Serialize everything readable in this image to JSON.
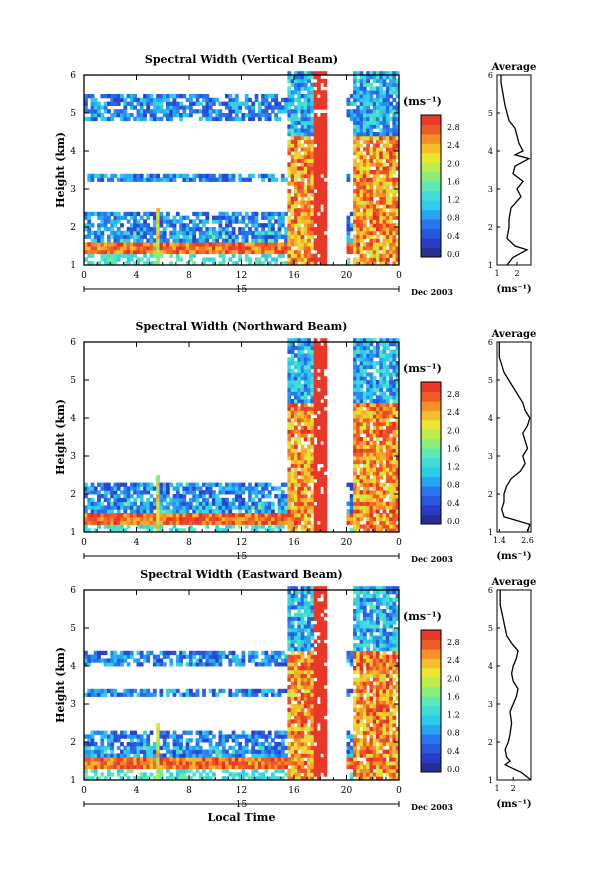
{
  "figure": {
    "shared_xlabel": "Local Time",
    "date_label": "Dec 2003",
    "day_label": "15",
    "ylabel": "Height (km)",
    "average_title": "Average",
    "unit_label": "(ms⁻¹)",
    "colorbar_ticks": [
      "2.8",
      "2.4",
      "2.0",
      "1.6",
      "1.2",
      "0.8",
      "0.4",
      "0.0"
    ]
  },
  "chart_data": [
    {
      "type": "heatmap",
      "title": "Spectral Width (Vertical Beam)",
      "xlabel": "",
      "ylabel": "Height (km)",
      "xlim": [
        0,
        24
      ],
      "ylim": [
        1,
        6
      ],
      "x_ticks": [
        "0",
        "4",
        "8",
        "12",
        "16",
        "20",
        "0"
      ],
      "y_ticks": [
        "1",
        "2",
        "3",
        "4",
        "5",
        "6"
      ],
      "colorbar": {
        "label": "(ms⁻¹)",
        "range": [
          0.0,
          3.0
        ],
        "ticks": [
          "2.8",
          "2.4",
          "2.0",
          "1.6",
          "1.2",
          "0.8",
          "0.4",
          "0.0"
        ]
      },
      "features": {
        "high_band_km": [
          1.3,
          1.6
        ],
        "low_layers_km": [
          [
            1.6,
            2.4
          ],
          [
            3.2,
            3.4
          ],
          [
            4.8,
            5.4
          ]
        ],
        "convective_hours": [
          [
            15.5,
            18.5
          ],
          [
            20.5,
            24
          ]
        ],
        "data_gap_hours": [
          18.5,
          20.0
        ]
      },
      "average_profile": {
        "title": "Average",
        "xlabel": "(ms⁻¹)",
        "x_ticks": [
          "1",
          "2"
        ],
        "xlim": [
          1,
          2.7
        ],
        "ylim": [
          1,
          6
        ],
        "height_km": [
          1.0,
          1.2,
          1.4,
          1.5,
          1.7,
          2.0,
          2.2,
          2.5,
          2.8,
          3.0,
          3.2,
          3.4,
          3.6,
          3.8,
          3.9,
          4.0,
          4.2,
          4.4,
          4.6,
          4.8,
          5.0,
          5.2,
          5.5,
          5.8,
          6.0
        ],
        "width": [
          1.5,
          1.8,
          2.5,
          1.9,
          1.5,
          1.6,
          1.6,
          1.7,
          2.2,
          2.0,
          2.3,
          1.8,
          1.9,
          2.6,
          1.9,
          2.3,
          2.1,
          2.0,
          1.9,
          1.6,
          1.5,
          1.4,
          1.3,
          1.2,
          1.2
        ]
      }
    },
    {
      "type": "heatmap",
      "title": "Spectral Width (Northward Beam)",
      "xlabel": "",
      "ylabel": "Height (km)",
      "xlim": [
        0,
        24
      ],
      "ylim": [
        1,
        6
      ],
      "x_ticks": [
        "0",
        "4",
        "8",
        "12",
        "16",
        "20",
        "0"
      ],
      "y_ticks": [
        "1",
        "2",
        "3",
        "4",
        "5",
        "6"
      ],
      "colorbar": {
        "label": "(ms⁻¹)",
        "range": [
          0.0,
          3.0
        ],
        "ticks": [
          "2.8",
          "2.4",
          "2.0",
          "1.6",
          "1.2",
          "0.8",
          "0.4",
          "0.0"
        ]
      },
      "features": {
        "high_band_km": [
          1.2,
          1.5
        ],
        "low_layers_km": [
          [
            1.5,
            2.3
          ]
        ],
        "convective_hours": [
          [
            15.5,
            18.5
          ],
          [
            20.5,
            24
          ]
        ],
        "data_gap_hours": [
          18.5,
          20.0
        ]
      },
      "average_profile": {
        "title": "Average",
        "xlabel": "(ms⁻¹)",
        "x_ticks": [
          "1.4",
          "2.6"
        ],
        "xlim": [
          1.3,
          2.75
        ],
        "ylim": [
          1,
          6
        ],
        "height_km": [
          1.0,
          1.2,
          1.4,
          1.6,
          1.8,
          2.0,
          2.2,
          2.4,
          2.6,
          2.8,
          3.0,
          3.2,
          3.4,
          3.6,
          3.8,
          4.0,
          4.2,
          4.4,
          4.6,
          4.8,
          5.0,
          5.2,
          5.4,
          5.6,
          5.8,
          6.0
        ],
        "width": [
          2.6,
          2.7,
          1.6,
          1.5,
          1.6,
          1.6,
          1.7,
          1.9,
          2.3,
          2.5,
          2.4,
          2.6,
          2.5,
          2.4,
          2.6,
          2.7,
          2.5,
          2.4,
          2.2,
          2.0,
          1.8,
          1.6,
          1.5,
          1.4,
          1.4,
          1.4
        ]
      }
    },
    {
      "type": "heatmap",
      "title": "Spectral Width (Eastward Beam)",
      "xlabel": "Local Time",
      "ylabel": "Height (km)",
      "xlim": [
        0,
        24
      ],
      "ylim": [
        1,
        6
      ],
      "x_ticks": [
        "0",
        "4",
        "8",
        "12",
        "16",
        "20",
        "0"
      ],
      "y_ticks": [
        "1",
        "2",
        "3",
        "4",
        "5",
        "6"
      ],
      "colorbar": {
        "label": "(ms⁻¹)",
        "range": [
          0.0,
          3.0
        ],
        "ticks": [
          "2.8",
          "2.4",
          "2.0",
          "1.6",
          "1.2",
          "0.8",
          "0.4",
          "0.0"
        ]
      },
      "features": {
        "high_band_km": [
          1.3,
          1.6
        ],
        "low_layers_km": [
          [
            1.6,
            2.3
          ],
          [
            3.2,
            3.4
          ],
          [
            4.0,
            4.4
          ]
        ],
        "convective_hours": [
          [
            15.5,
            18.5
          ],
          [
            20.5,
            24
          ]
        ],
        "data_gap_hours": [
          18.5,
          20.0
        ]
      },
      "average_profile": {
        "title": "Average",
        "xlabel": "(ms⁻¹)",
        "x_ticks": [
          "1",
          "2"
        ],
        "xlim": [
          1,
          3.1
        ],
        "ylim": [
          1,
          6
        ],
        "height_km": [
          1.0,
          1.2,
          1.4,
          1.5,
          1.6,
          1.8,
          2.0,
          2.2,
          2.5,
          2.8,
          3.0,
          3.2,
          3.4,
          3.6,
          3.8,
          4.0,
          4.2,
          4.4,
          4.6,
          4.8,
          5.0,
          5.2,
          5.4,
          5.6,
          5.8,
          6.0
        ],
        "width": [
          3.1,
          2.5,
          1.5,
          1.8,
          1.6,
          1.5,
          1.7,
          1.8,
          1.9,
          1.8,
          2.0,
          2.2,
          2.3,
          2.0,
          1.9,
          2.0,
          2.2,
          2.3,
          1.9,
          1.6,
          1.5,
          1.4,
          1.3,
          1.2,
          1.2,
          1.2
        ]
      }
    }
  ]
}
